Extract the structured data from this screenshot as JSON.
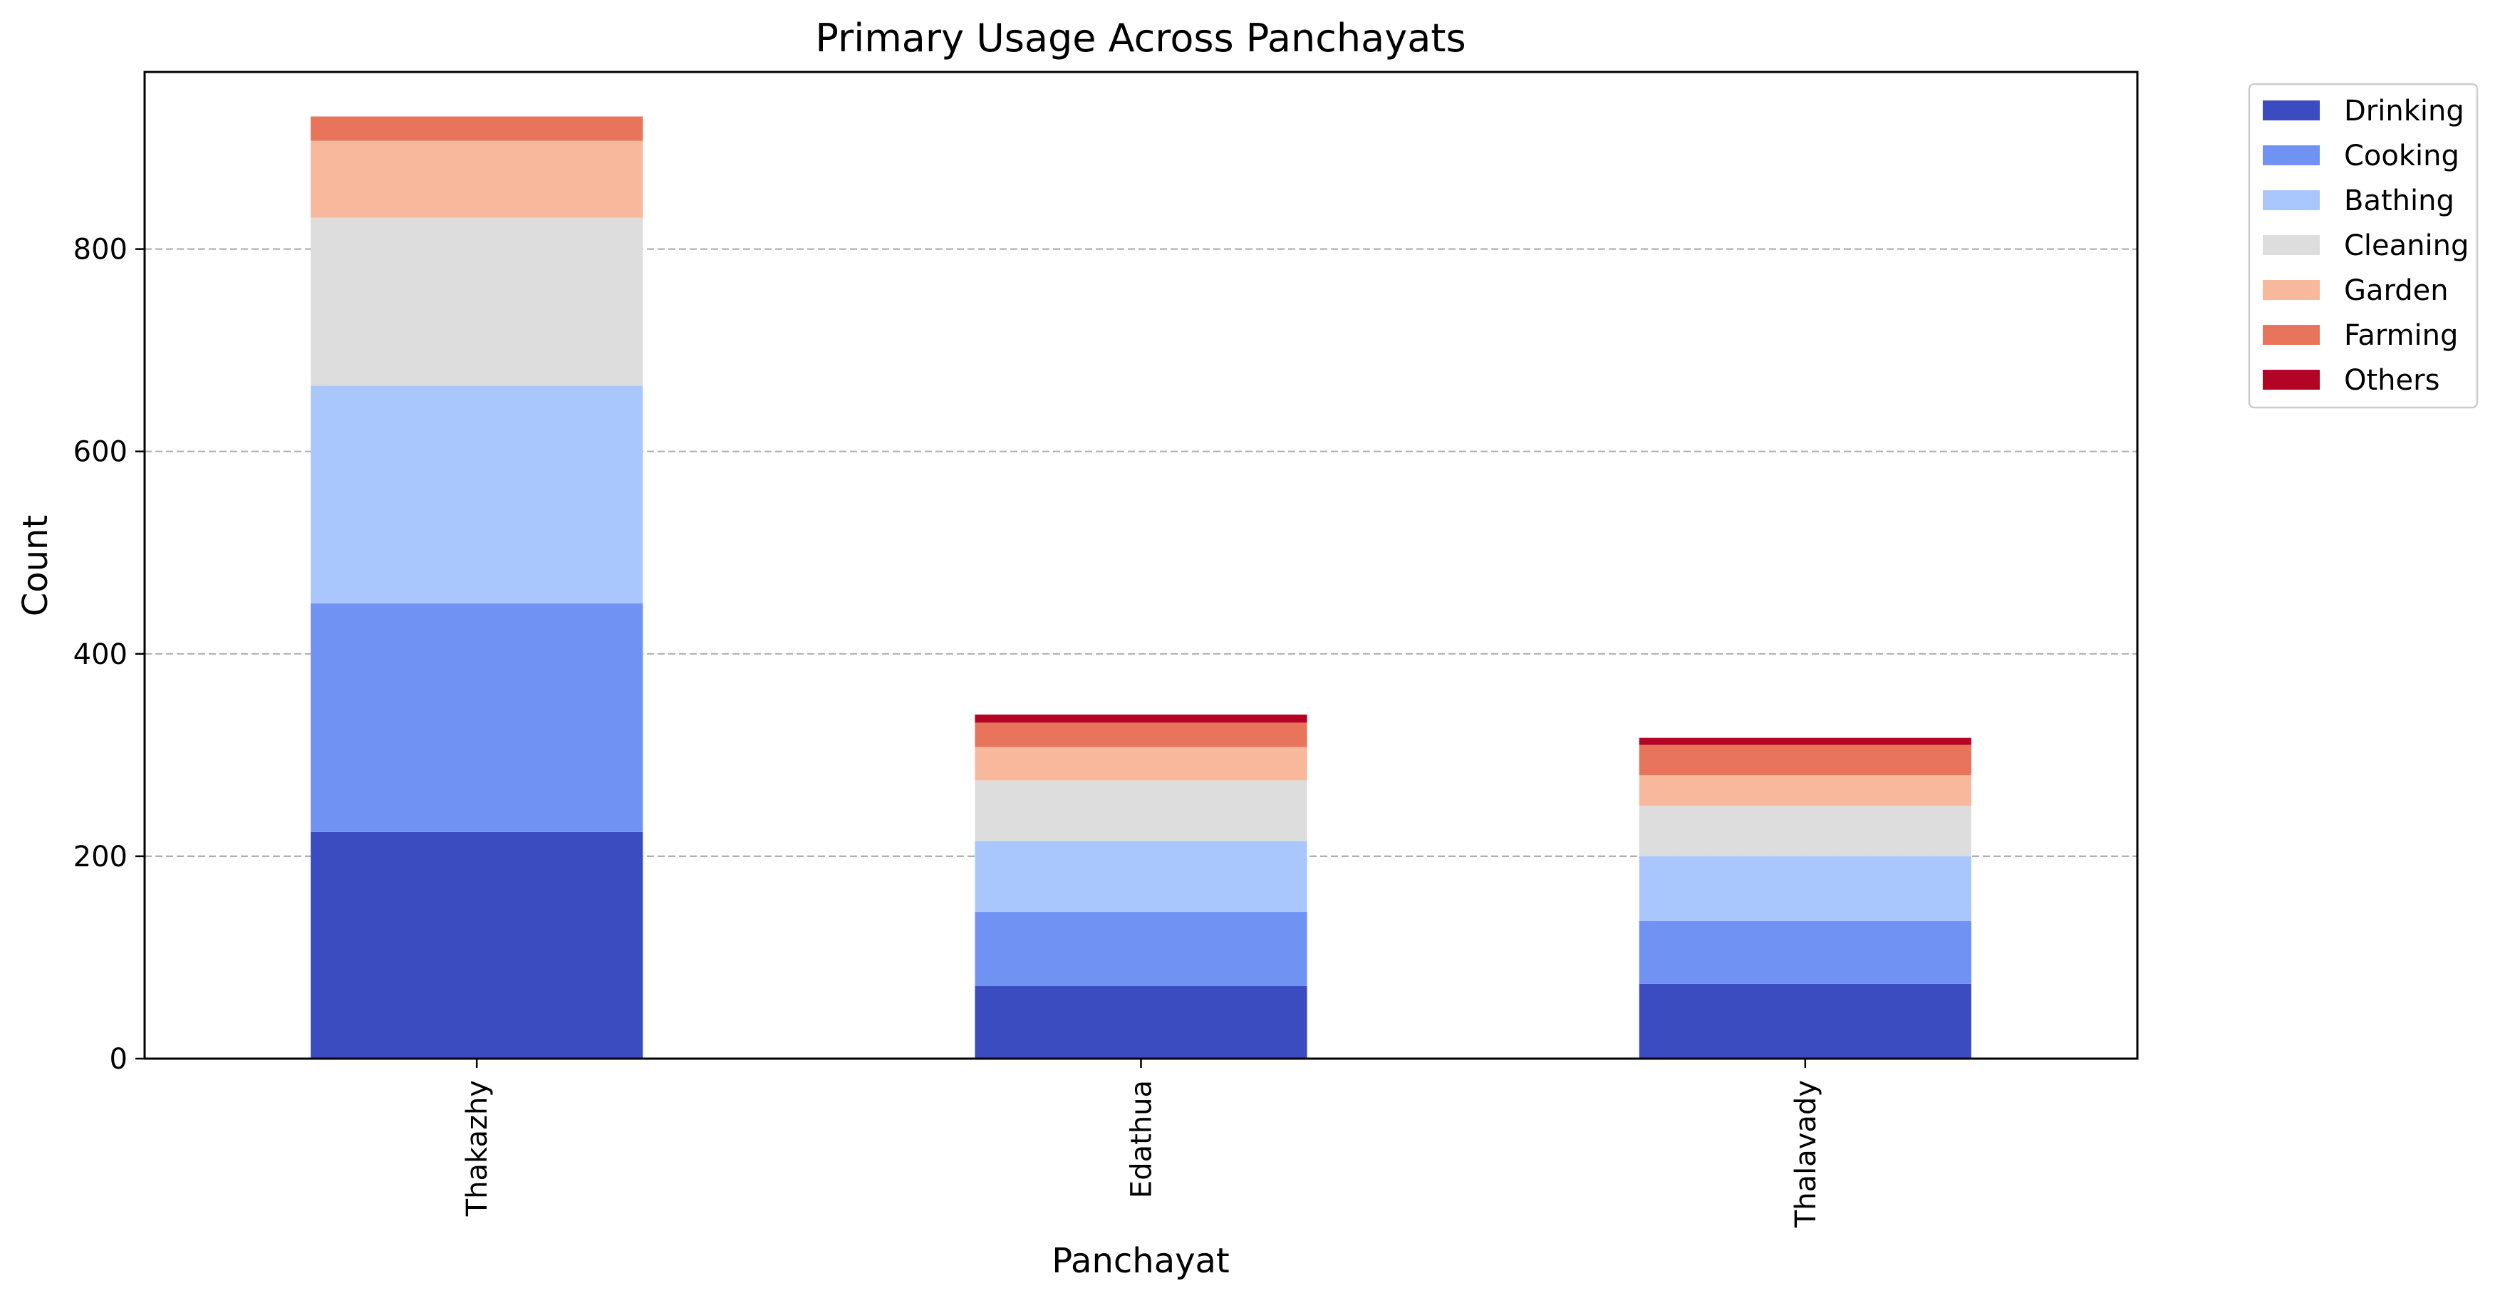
{
  "chart_data": {
    "type": "bar",
    "stacked": true,
    "title": "Primary Usage Across Panchayats",
    "xlabel": "Panchayat",
    "ylabel": "Count",
    "categories": [
      "Thakazhy",
      "Edathua",
      "Thalavady"
    ],
    "ylim": [
      0,
      975
    ],
    "yticks": [
      0,
      200,
      400,
      600,
      800
    ],
    "grid": "y-dashed",
    "legend_position": "outside-top-right",
    "series": [
      {
        "name": "Drinking",
        "color": "#3b4cc0",
        "values": [
          224,
          72,
          74
        ]
      },
      {
        "name": "Cooking",
        "color": "#7093f3",
        "values": [
          226,
          73,
          62
        ]
      },
      {
        "name": "Bathing",
        "color": "#aac7fd",
        "values": [
          215,
          70,
          64
        ]
      },
      {
        "name": "Cleaning",
        "color": "#dddddd",
        "values": [
          166,
          60,
          50
        ]
      },
      {
        "name": "Garden",
        "color": "#f7b89c",
        "values": [
          76,
          33,
          30
        ]
      },
      {
        "name": "Farming",
        "color": "#e7745b",
        "values": [
          24,
          24,
          30
        ]
      },
      {
        "name": "Others",
        "color": "#b40426",
        "values": [
          0,
          8,
          7
        ]
      }
    ]
  }
}
